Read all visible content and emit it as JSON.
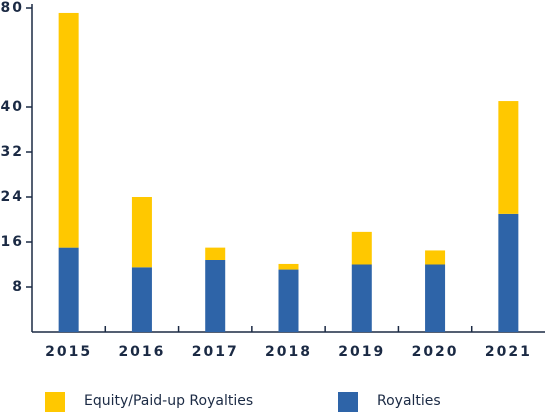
{
  "chart_data": {
    "type": "stacked-bar",
    "categories": [
      "2015",
      "2016",
      "2017",
      "2018",
      "2019",
      "2020",
      "2021"
    ],
    "series": [
      {
        "name": "Equity/Paid-up Royalties",
        "color": "#ffc800",
        "values": [
          63,
          12.5,
          2.2,
          1,
          5.8,
          2.5,
          21.4
        ]
      },
      {
        "name": "Royalties",
        "color": "#2e64a8",
        "values": [
          15,
          11.5,
          12.8,
          11.1,
          12,
          12,
          21
        ]
      }
    ],
    "ylim": [
      0,
      80
    ],
    "yticks": [
      8,
      16,
      24,
      32,
      40,
      80
    ]
  }
}
